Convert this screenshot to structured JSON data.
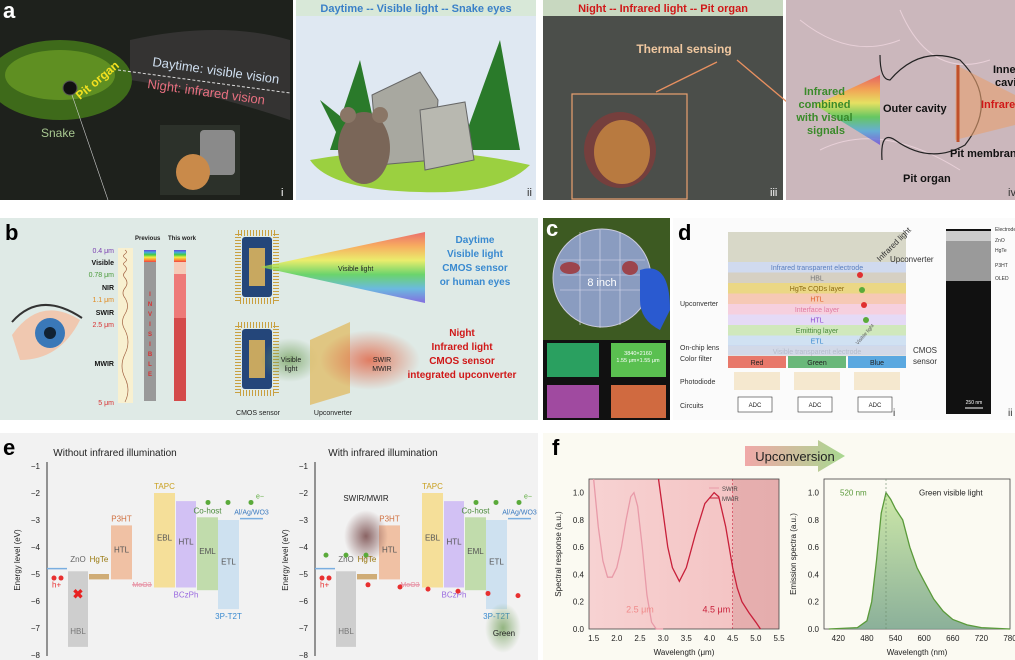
{
  "panel_a": {
    "label": "a",
    "i": {
      "snake": "Snake",
      "pit_organ": "Pit organ",
      "daytime": "Daytime: visible vision",
      "night": "Night: infrared vision",
      "num": "i"
    },
    "ii": {
      "title": "Daytime -- Visible light -- Snake eyes",
      "num": "ii"
    },
    "iii": {
      "title": "Night -- Infrared light -- Pit organ",
      "thermal": "Thermal sensing",
      "num": "iii"
    },
    "iv": {
      "combined": [
        "Infrared",
        "combined",
        "with visual",
        "signals"
      ],
      "outer_cavity": "Outer cavity",
      "inner_cavity": [
        "Inner",
        "cavity"
      ],
      "infrared": "Infrared",
      "pit_membrane": "Pit membrane",
      "pit_organ": "Pit organ",
      "num": "iv"
    }
  },
  "panel_b": {
    "label": "b",
    "previous": "Previous",
    "this_work": "This work",
    "scale": [
      {
        "text": "0.4 μm",
        "color": "#7a3fb0"
      },
      {
        "text": "Visible",
        "color": "#111111"
      },
      {
        "text": "0.78 μm",
        "color": "#4a9a3a"
      },
      {
        "text": "NIR",
        "color": "#111111"
      },
      {
        "text": "1.1 μm",
        "color": "#e08a20"
      },
      {
        "text": "SWIR",
        "color": "#111111"
      },
      {
        "text": "2.5 μm",
        "color": "#d83030"
      },
      {
        "text": "MWIR",
        "color": "#111111"
      },
      {
        "text": "5 μm",
        "color": "#d83030"
      }
    ],
    "invisible": [
      "I",
      "N",
      "V",
      "I",
      "S",
      "I",
      "B",
      "L",
      "E"
    ],
    "visible_light": "Visible light",
    "day_text": [
      "Daytime",
      "Visible light",
      "CMOS sensor",
      "or human eyes"
    ],
    "visible_light2": [
      "Visible",
      "light"
    ],
    "swir_mwir": [
      "SWIR",
      "MWIR"
    ],
    "night_text": [
      "Night",
      "Infrared light",
      "CMOS sensor",
      "integrated upconverter"
    ],
    "cmos": "CMOS sensor",
    "upconverter": "Upconverter"
  },
  "panel_c": {
    "label": "c",
    "size": "8 inch",
    "res": [
      "3840×2160",
      "1.55 μm×1.55 μm"
    ]
  },
  "panel_d": {
    "label": "d",
    "layers": [
      {
        "text": "Infrared transparent electrode",
        "color": "#5a7fc0"
      },
      {
        "text": "HBL",
        "color": "#777777"
      },
      {
        "text": "HgTe CQDs layer",
        "color": "#8a6a10"
      },
      {
        "text": "HTL",
        "color": "#e0602a"
      },
      {
        "text": "Interface layer",
        "color": "#e07aa0"
      },
      {
        "text": "HTL",
        "color": "#8a4ad0"
      },
      {
        "text": "Emitting layer",
        "color": "#4a8a3a"
      },
      {
        "text": "ETL",
        "color": "#3a8ad0"
      },
      {
        "text": "Visible transparent electrode",
        "color": "#999999"
      }
    ],
    "filters": [
      "Red",
      "Green",
      "Blue"
    ],
    "adc": "ADC",
    "side_labels": [
      "Upconverter",
      "On-chip lens",
      "Color filter",
      "Photodiode",
      "Circuits"
    ],
    "infrared_light": "Infrared light",
    "visible_light": "Visible light",
    "right_labels": [
      "Upconverter",
      "CMOS",
      "sensor"
    ],
    "tem_labels": [
      "Electrode",
      "ZnO",
      "HgTe",
      "P3HT",
      "OLED"
    ],
    "scale_bar": "250 nm",
    "num1": "i",
    "num2": "ii"
  },
  "chart_data": [
    {
      "type": "bar",
      "panel": "e",
      "title": "Without infrared illumination",
      "ylabel": "Energy level (eV)",
      "ylim": [
        -8,
        -1
      ],
      "yticks": [
        "−1",
        "−2",
        "−3",
        "−4",
        "−5",
        "−6",
        "−7",
        "−8"
      ],
      "levels": [
        {
          "name": "ZnO",
          "role": "HBL",
          "top": -4.9,
          "bottom": -7.7,
          "color": "#c8c8c8"
        },
        {
          "name": "HgTe",
          "role": "",
          "top": -5.0,
          "bottom": -5.2,
          "color": "#c9a060"
        },
        {
          "name": "P3HT",
          "role": "HTL",
          "top": -3.2,
          "bottom": -5.2,
          "color": "#f0b896"
        },
        {
          "name": "TAPC",
          "role": "EBL",
          "top": -2.0,
          "bottom": -5.5,
          "color": "#f6dc8a"
        },
        {
          "name": "BCzPh",
          "role": "HTL",
          "top": -2.3,
          "bottom": -5.5,
          "color": "#cdb8f4"
        },
        {
          "name": "Co-host",
          "role": "EML",
          "top": -2.9,
          "bottom": -5.6,
          "color": "#b8d8a0"
        },
        {
          "name": "3P-T2T",
          "role": "ETL",
          "top": -3.0,
          "bottom": -6.3,
          "color": "#c8def0"
        }
      ],
      "lines": [
        {
          "name": "",
          "value": -4.8,
          "color": "#7aaee0"
        },
        {
          "name": "MoO3",
          "value": -5.4,
          "color": "#e8a8b8"
        },
        {
          "name": "Al/Ag/WO3",
          "value": -2.95,
          "color": "#7aaee0"
        }
      ],
      "annotations": {
        "hole": "h+",
        "electron": "e−"
      }
    },
    {
      "type": "bar",
      "panel": "e",
      "title": "With infrared illumination",
      "ylabel": "Energy level (eV)",
      "ylim": [
        -8,
        -1
      ],
      "annotations": {
        "source": "SWIR/MWIR",
        "emission": "Green",
        "hole": "h+",
        "electron": "e−"
      }
    },
    {
      "type": "line",
      "panel": "f",
      "xlabel": "Wavelength (μm)",
      "ylabel": "Spectral response (a.u.)",
      "xlim": [
        1.4,
        5.5
      ],
      "ylim": [
        0,
        1.1
      ],
      "xticks": [
        "1.5",
        "2.0",
        "2.5",
        "3.0",
        "3.5",
        "4.0",
        "4.5",
        "5.0",
        "5.5"
      ],
      "yticks": [
        "0.0",
        "0.2",
        "0.4",
        "0.6",
        "0.8",
        "1.0"
      ],
      "legend": "top-right",
      "annotations": [
        "2.5 μm",
        "4.5 μm"
      ],
      "series": [
        {
          "name": "SWIR",
          "color": "#e89aa8",
          "x": [
            1.5,
            1.6,
            1.7,
            1.8,
            1.9,
            2.0,
            2.1,
            2.2,
            2.3,
            2.37,
            2.45,
            2.55,
            2.65,
            2.75,
            2.85,
            3.0
          ],
          "y": [
            1.1,
            0.75,
            0.5,
            0.38,
            0.38,
            0.45,
            0.6,
            0.8,
            0.97,
            1.0,
            0.9,
            0.6,
            0.25,
            0.05,
            0.0,
            0.0
          ]
        },
        {
          "name": "MWIR",
          "color": "#c8203a",
          "x": [
            2.9,
            3.0,
            3.1,
            3.2,
            3.35,
            3.5,
            3.7,
            3.9,
            4.1,
            4.2,
            4.35,
            4.5,
            4.6,
            4.7,
            4.85,
            5.0,
            5.1
          ],
          "y": [
            1.1,
            0.85,
            0.6,
            0.45,
            0.35,
            0.45,
            0.7,
            0.92,
            1.0,
            0.97,
            0.75,
            0.45,
            0.3,
            0.2,
            0.12,
            0.05,
            0.0
          ]
        }
      ]
    },
    {
      "type": "area",
      "panel": "f",
      "banner": "Upconversion",
      "xlabel": "Wavelength (nm)",
      "ylabel": "Emission spectra (a.u.)",
      "xlim": [
        390,
        780
      ],
      "ylim": [
        0,
        1.1
      ],
      "xticks": [
        "420",
        "480",
        "540",
        "600",
        "660",
        "720",
        "780"
      ],
      "yticks": [
        "0.0",
        "0.2",
        "0.4",
        "0.6",
        "0.8",
        "1.0"
      ],
      "annotations": [
        "520 nm",
        "Green visible light"
      ],
      "series": [
        {
          "name": "Emission",
          "color": "#5a9a3a",
          "x": [
            400,
            460,
            480,
            490,
            500,
            510,
            520,
            530,
            540,
            555,
            570,
            585,
            600,
            620,
            640,
            660,
            690,
            720,
            780
          ],
          "y": [
            0,
            0.01,
            0.06,
            0.2,
            0.5,
            0.85,
            1.0,
            0.95,
            0.88,
            0.8,
            0.6,
            0.45,
            0.35,
            0.22,
            0.13,
            0.07,
            0.03,
            0.01,
            0
          ]
        }
      ]
    }
  ],
  "panel_e": {
    "label": "e"
  },
  "panel_f": {
    "label": "f"
  }
}
